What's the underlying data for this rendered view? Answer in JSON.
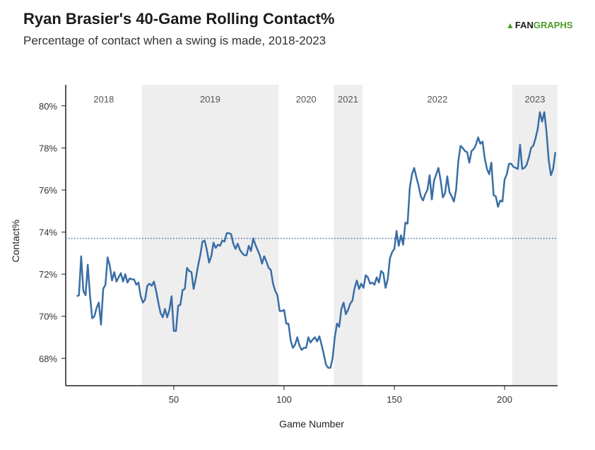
{
  "header": {
    "title": "Ryan Brasier's 40-Game Rolling Contact%",
    "subtitle": "Percentage of contact when a swing is made, 2018-2023",
    "logo_fan": "FAN",
    "logo_graphs": "GRAPHS"
  },
  "chart_data": {
    "type": "line",
    "title": "Ryan Brasier's 40-Game Rolling Contact%",
    "subtitle": "Percentage of contact when a swing is made, 2018-2023",
    "xlabel": "Game Number",
    "ylabel": "Contact%",
    "xlim": [
      1,
      224
    ],
    "ylim": [
      66.7,
      81.0
    ],
    "xticks": [
      50,
      100,
      150,
      200
    ],
    "yticks": [
      68,
      70,
      72,
      74,
      76,
      78,
      80
    ],
    "ytick_labels": [
      "68%",
      "70%",
      "72%",
      "74%",
      "76%",
      "78%",
      "80%"
    ],
    "grid": false,
    "line_color": "#3a6ea5",
    "reference_line": {
      "y": 73.7,
      "style": "dotted",
      "color": "#3a6ea5"
    },
    "seasons": [
      {
        "label": "2018",
        "start": 1,
        "end": 35.5,
        "shaded": false
      },
      {
        "label": "2019",
        "start": 35.5,
        "end": 97.5,
        "shaded": true
      },
      {
        "label": "2020",
        "start": 97.5,
        "end": 122.5,
        "shaded": false
      },
      {
        "label": "2021",
        "start": 122.5,
        "end": 135.5,
        "shaded": true
      },
      {
        "label": "2022",
        "start": 135.5,
        "end": 203.5,
        "shaded": false
      },
      {
        "label": "2023",
        "start": 203.5,
        "end": 224,
        "shaded": true
      }
    ],
    "series": [
      {
        "x": [
          6,
          7,
          8,
          9,
          10,
          11,
          12,
          13,
          14,
          15,
          16,
          17,
          18,
          19,
          20,
          21,
          22,
          23,
          24,
          25,
          26,
          27,
          28,
          29,
          30,
          31,
          32,
          33,
          34,
          35,
          36,
          37,
          38,
          39,
          40,
          41,
          42,
          43,
          44,
          45,
          46,
          47,
          48,
          49,
          50,
          51,
          52,
          53,
          54,
          55,
          56,
          57,
          58,
          59,
          60,
          61,
          62,
          63,
          64,
          65,
          66,
          67,
          68,
          69,
          70,
          71,
          72,
          73,
          74,
          75,
          76,
          77,
          78,
          79,
          80,
          81,
          82,
          83,
          84,
          85,
          86,
          87,
          88,
          89,
          90,
          91,
          92,
          93,
          94,
          95,
          96,
          97,
          98,
          99,
          100,
          101,
          102,
          103,
          104,
          105,
          106,
          107,
          108,
          109,
          110,
          111,
          112,
          113,
          114,
          115,
          116,
          117,
          118,
          119,
          120,
          121,
          122,
          123,
          124,
          125,
          126,
          127,
          128,
          129,
          130,
          131,
          132,
          133,
          134,
          135,
          136,
          137,
          138,
          139,
          140,
          141,
          142,
          143,
          144,
          145,
          146,
          147,
          148,
          149,
          150,
          151,
          152,
          153,
          154,
          155,
          156,
          157,
          158,
          159,
          160,
          161,
          162,
          163,
          164,
          165,
          166,
          167,
          168,
          169,
          170,
          171,
          172,
          173,
          174,
          175,
          176,
          177,
          178,
          179,
          180,
          181,
          182,
          183,
          184,
          185,
          186,
          187,
          188,
          189,
          190,
          191,
          192,
          193,
          194,
          195,
          196,
          197,
          198,
          199,
          200,
          201,
          202,
          203,
          204,
          205,
          206,
          207,
          208,
          209,
          210,
          211,
          212,
          213,
          214,
          215,
          216,
          217,
          218,
          219,
          220,
          221,
          222,
          223
        ],
        "y": [
          70.95,
          71.0,
          72.85,
          71.2,
          71.0,
          72.45,
          71.0,
          69.9,
          70.0,
          70.4,
          70.65,
          69.6,
          71.3,
          71.5,
          72.8,
          72.4,
          71.7,
          72.1,
          71.65,
          71.85,
          72.05,
          71.65,
          72.0,
          71.6,
          71.8,
          71.75,
          71.75,
          71.5,
          71.6,
          70.95,
          70.65,
          70.8,
          71.45,
          71.55,
          71.45,
          71.65,
          71.2,
          70.65,
          70.15,
          69.95,
          70.35,
          69.95,
          70.3,
          70.95,
          69.3,
          69.3,
          70.5,
          70.55,
          71.25,
          71.3,
          72.3,
          72.15,
          72.1,
          71.3,
          71.8,
          72.4,
          72.9,
          73.55,
          73.6,
          73.15,
          72.55,
          72.85,
          73.5,
          73.25,
          73.4,
          73.35,
          73.6,
          73.55,
          73.95,
          73.95,
          73.9,
          73.45,
          73.2,
          73.45,
          73.15,
          73.0,
          72.9,
          72.9,
          73.35,
          73.1,
          73.7,
          73.4,
          73.15,
          72.9,
          72.5,
          72.85,
          72.6,
          72.3,
          72.2,
          71.55,
          71.2,
          71.0,
          70.25,
          70.25,
          70.3,
          69.65,
          69.65,
          68.85,
          68.5,
          68.65,
          69.0,
          68.6,
          68.4,
          68.5,
          68.5,
          69.0,
          68.75,
          68.9,
          69.0,
          68.8,
          69.05,
          68.65,
          68.2,
          67.7,
          67.55,
          67.55,
          68.0,
          69.0,
          69.65,
          69.5,
          70.35,
          70.65,
          70.1,
          70.3,
          70.6,
          70.75,
          71.35,
          71.7,
          71.3,
          71.55,
          71.35,
          71.95,
          71.85,
          71.55,
          71.6,
          71.5,
          71.85,
          71.6,
          72.15,
          72.05,
          71.35,
          71.75,
          72.75,
          73.05,
          73.2,
          74.05,
          73.35,
          73.85,
          73.4,
          74.45,
          74.4,
          76.1,
          76.75,
          77.05,
          76.6,
          76.2,
          75.7,
          75.5,
          75.8,
          76.0,
          76.7,
          75.55,
          76.45,
          76.75,
          77.05,
          76.45,
          75.65,
          75.85,
          76.65,
          75.9,
          75.7,
          75.45,
          76.0,
          77.35,
          78.1,
          78.0,
          77.85,
          77.8,
          77.3,
          77.85,
          77.95,
          78.15,
          78.5,
          78.2,
          78.3,
          77.5,
          77.0,
          76.75,
          77.3,
          75.75,
          75.7,
          75.2,
          75.5,
          75.45,
          76.5,
          76.75,
          77.25,
          77.25,
          77.1,
          77.05,
          77.0,
          78.15,
          77.0,
          77.05,
          77.2,
          77.55,
          78.0,
          78.1,
          78.45,
          78.9,
          79.7,
          79.25,
          79.7,
          78.75,
          77.4,
          76.7,
          77.0,
          77.8
        ]
      }
    ]
  }
}
